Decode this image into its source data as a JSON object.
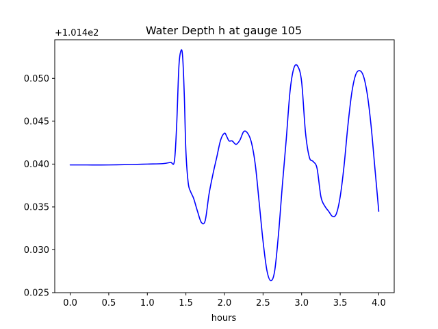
{
  "chart_data": {
    "type": "line",
    "title": "Water Depth h at gauge 105",
    "xlabel": "hours",
    "ylabel": "",
    "y_offset_label": "+1.014e2",
    "xlim": [
      -0.2,
      4.2
    ],
    "ylim": [
      0.025,
      0.0545
    ],
    "x_ticks": [
      0.0,
      0.5,
      1.0,
      1.5,
      2.0,
      2.5,
      3.0,
      3.5,
      4.0
    ],
    "x_tick_labels": [
      "0.0",
      "0.5",
      "1.0",
      "1.5",
      "2.0",
      "2.5",
      "3.0",
      "3.5",
      "4.0"
    ],
    "y_ticks": [
      0.025,
      0.03,
      0.035,
      0.04,
      0.045,
      0.05
    ],
    "y_tick_labels": [
      "0.025",
      "0.030",
      "0.035",
      "0.040",
      "0.045",
      "0.050"
    ],
    "grid": false,
    "legend": "none",
    "series": [
      {
        "color": "#0000ff",
        "x": [
          0.0,
          0.2,
          0.5,
          0.8,
          1.0,
          1.2,
          1.3,
          1.35,
          1.38,
          1.41,
          1.44,
          1.46,
          1.48,
          1.5,
          1.53,
          1.56,
          1.6,
          1.65,
          1.7,
          1.75,
          1.8,
          1.85,
          1.9,
          1.95,
          2.0,
          2.03,
          2.06,
          2.1,
          2.15,
          2.2,
          2.25,
          2.3,
          2.35,
          2.4,
          2.45,
          2.5,
          2.55,
          2.6,
          2.65,
          2.7,
          2.75,
          2.8,
          2.85,
          2.9,
          2.95,
          3.0,
          3.05,
          3.1,
          3.15,
          3.2,
          3.25,
          3.3,
          3.35,
          3.4,
          3.45,
          3.5,
          3.55,
          3.6,
          3.65,
          3.7,
          3.75,
          3.8,
          3.85,
          3.9,
          3.95,
          4.0
        ],
        "y": [
          0.0399,
          0.0399,
          0.0399,
          0.03995,
          0.04,
          0.04005,
          0.0402,
          0.0403,
          0.0445,
          0.0515,
          0.0533,
          0.0522,
          0.0478,
          0.0415,
          0.0378,
          0.0368,
          0.036,
          0.0345,
          0.0332,
          0.0334,
          0.0365,
          0.0388,
          0.0408,
          0.0428,
          0.0436,
          0.0432,
          0.0427,
          0.0427,
          0.0423,
          0.0428,
          0.0438,
          0.0436,
          0.0425,
          0.0399,
          0.0355,
          0.031,
          0.0276,
          0.0264,
          0.0275,
          0.0318,
          0.0375,
          0.0428,
          0.0485,
          0.0512,
          0.0514,
          0.0496,
          0.0437,
          0.0408,
          0.0403,
          0.0395,
          0.0362,
          0.0351,
          0.0345,
          0.0339,
          0.0342,
          0.0362,
          0.0398,
          0.0445,
          0.0483,
          0.0504,
          0.0509,
          0.0503,
          0.0482,
          0.0445,
          0.0395,
          0.0345
        ]
      }
    ]
  },
  "colors": {
    "line": "#0000ff",
    "axes": "#000000",
    "background": "#ffffff"
  }
}
